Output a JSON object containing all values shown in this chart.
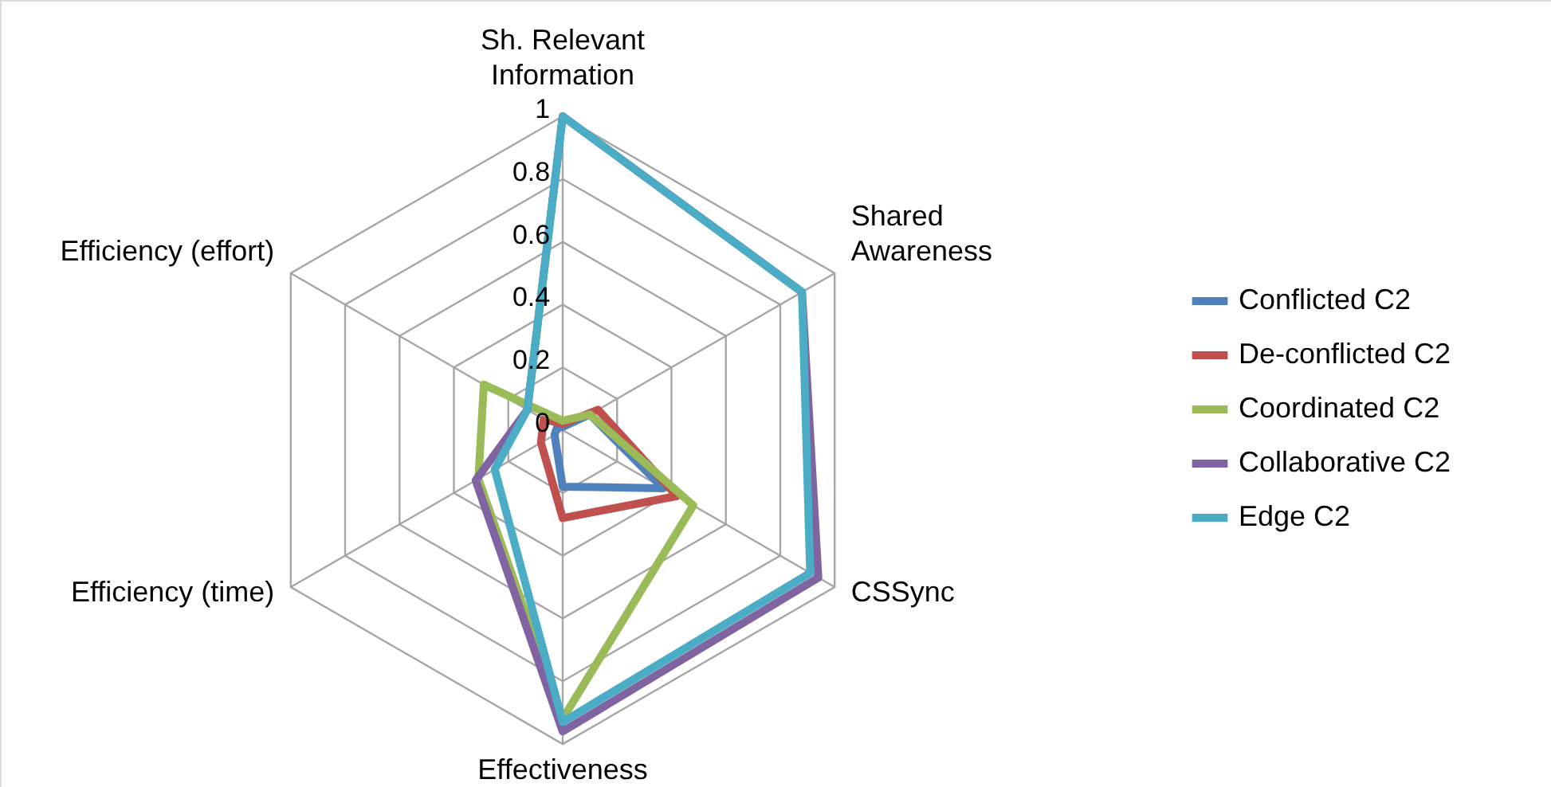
{
  "chart_data": {
    "type": "radar",
    "categories": [
      "Sh. Relevant\nInformation",
      "Shared\nAwareness",
      "CSSync",
      "Effectiveness",
      "Efficiency (time)",
      "Efficiency (effort)"
    ],
    "series": [
      {
        "name": "Conflicted C2",
        "color": "#4f81bd",
        "values": [
          0.01,
          0.1,
          0.37,
          0.18,
          0.03,
          0.02
        ]
      },
      {
        "name": "De-conflicted C2",
        "color": "#c0504d",
        "values": [
          0.02,
          0.13,
          0.42,
          0.28,
          0.08,
          0.07
        ]
      },
      {
        "name": "Coordinated C2",
        "color": "#9bbb59",
        "values": [
          0.03,
          0.1,
          0.48,
          0.92,
          0.31,
          0.29
        ]
      },
      {
        "name": "Collaborative C2",
        "color": "#8064a2",
        "values": [
          1,
          0.88,
          0.94,
          0.96,
          0.32,
          0.13
        ]
      },
      {
        "name": "Edge C2",
        "color": "#4bacc6",
        "values": [
          1,
          0.88,
          0.91,
          0.93,
          0.25,
          0.13
        ]
      }
    ],
    "ylim": [
      0,
      1
    ],
    "yticks": [
      0,
      0.2,
      0.4,
      0.6,
      0.8,
      1
    ],
    "grid": true,
    "legend": "right"
  }
}
